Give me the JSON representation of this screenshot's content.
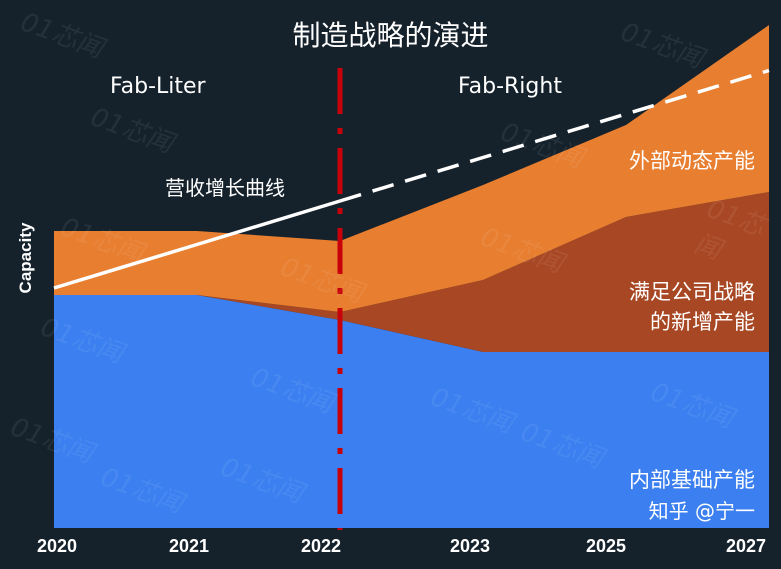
{
  "chart_data": {
    "type": "area",
    "stacked": true,
    "title": "制造战略的演进",
    "ylabel": "Capacity",
    "xlabel": "",
    "categories": [
      "2020",
      "2021",
      "2022",
      "2023",
      "2025",
      "2027"
    ],
    "ylim": [
      0,
      100
    ],
    "grid": false,
    "series": [
      {
        "name": "内部基础产能",
        "color": "#3b7ff0",
        "values": [
          46.6,
          46.6,
          41.6,
          35.2,
          35.2,
          35.2
        ]
      },
      {
        "name": "满足公司战略的新增产能",
        "color": "#a84723",
        "values": [
          0,
          0,
          1.6,
          14.4,
          27,
          32
        ]
      },
      {
        "name": "外部动态产能",
        "color": "#e87e30",
        "values": [
          12.8,
          12.8,
          14.2,
          19,
          18.4,
          33.4
        ]
      }
    ],
    "line": {
      "name": "营收增长曲线",
      "color": "#ffffff",
      "values": [
        48,
        56.7,
        65.4,
        74.1,
        82.8,
        91.5
      ],
      "solid_until": "2022",
      "dashed_after": "2022"
    },
    "divider": {
      "at": "2022",
      "color": "#c8000a",
      "style": "dash-dot"
    },
    "annotations": {
      "left_era": "Fab-Liter",
      "right_era": "Fab-Right",
      "line_label": "营收增长曲线",
      "series_labels": [
        "外部动态产能",
        "满足公司战略",
        "的新增产能",
        "内部基础产能"
      ]
    }
  },
  "watermark": "01芯闻",
  "credit": "知乎 @宁一"
}
